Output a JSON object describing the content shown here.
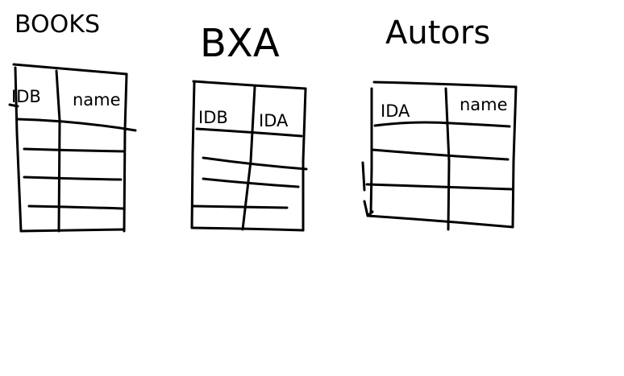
{
  "tables": [
    {
      "title": "BOOKS",
      "columns": [
        "IDB",
        "name"
      ]
    },
    {
      "title": "BXA",
      "columns": [
        "IDB",
        "IDA"
      ]
    },
    {
      "title": "Autors",
      "columns": [
        "IDA",
        "name"
      ]
    }
  ],
  "ink_color": "#000000",
  "background_color": "#ffffff"
}
